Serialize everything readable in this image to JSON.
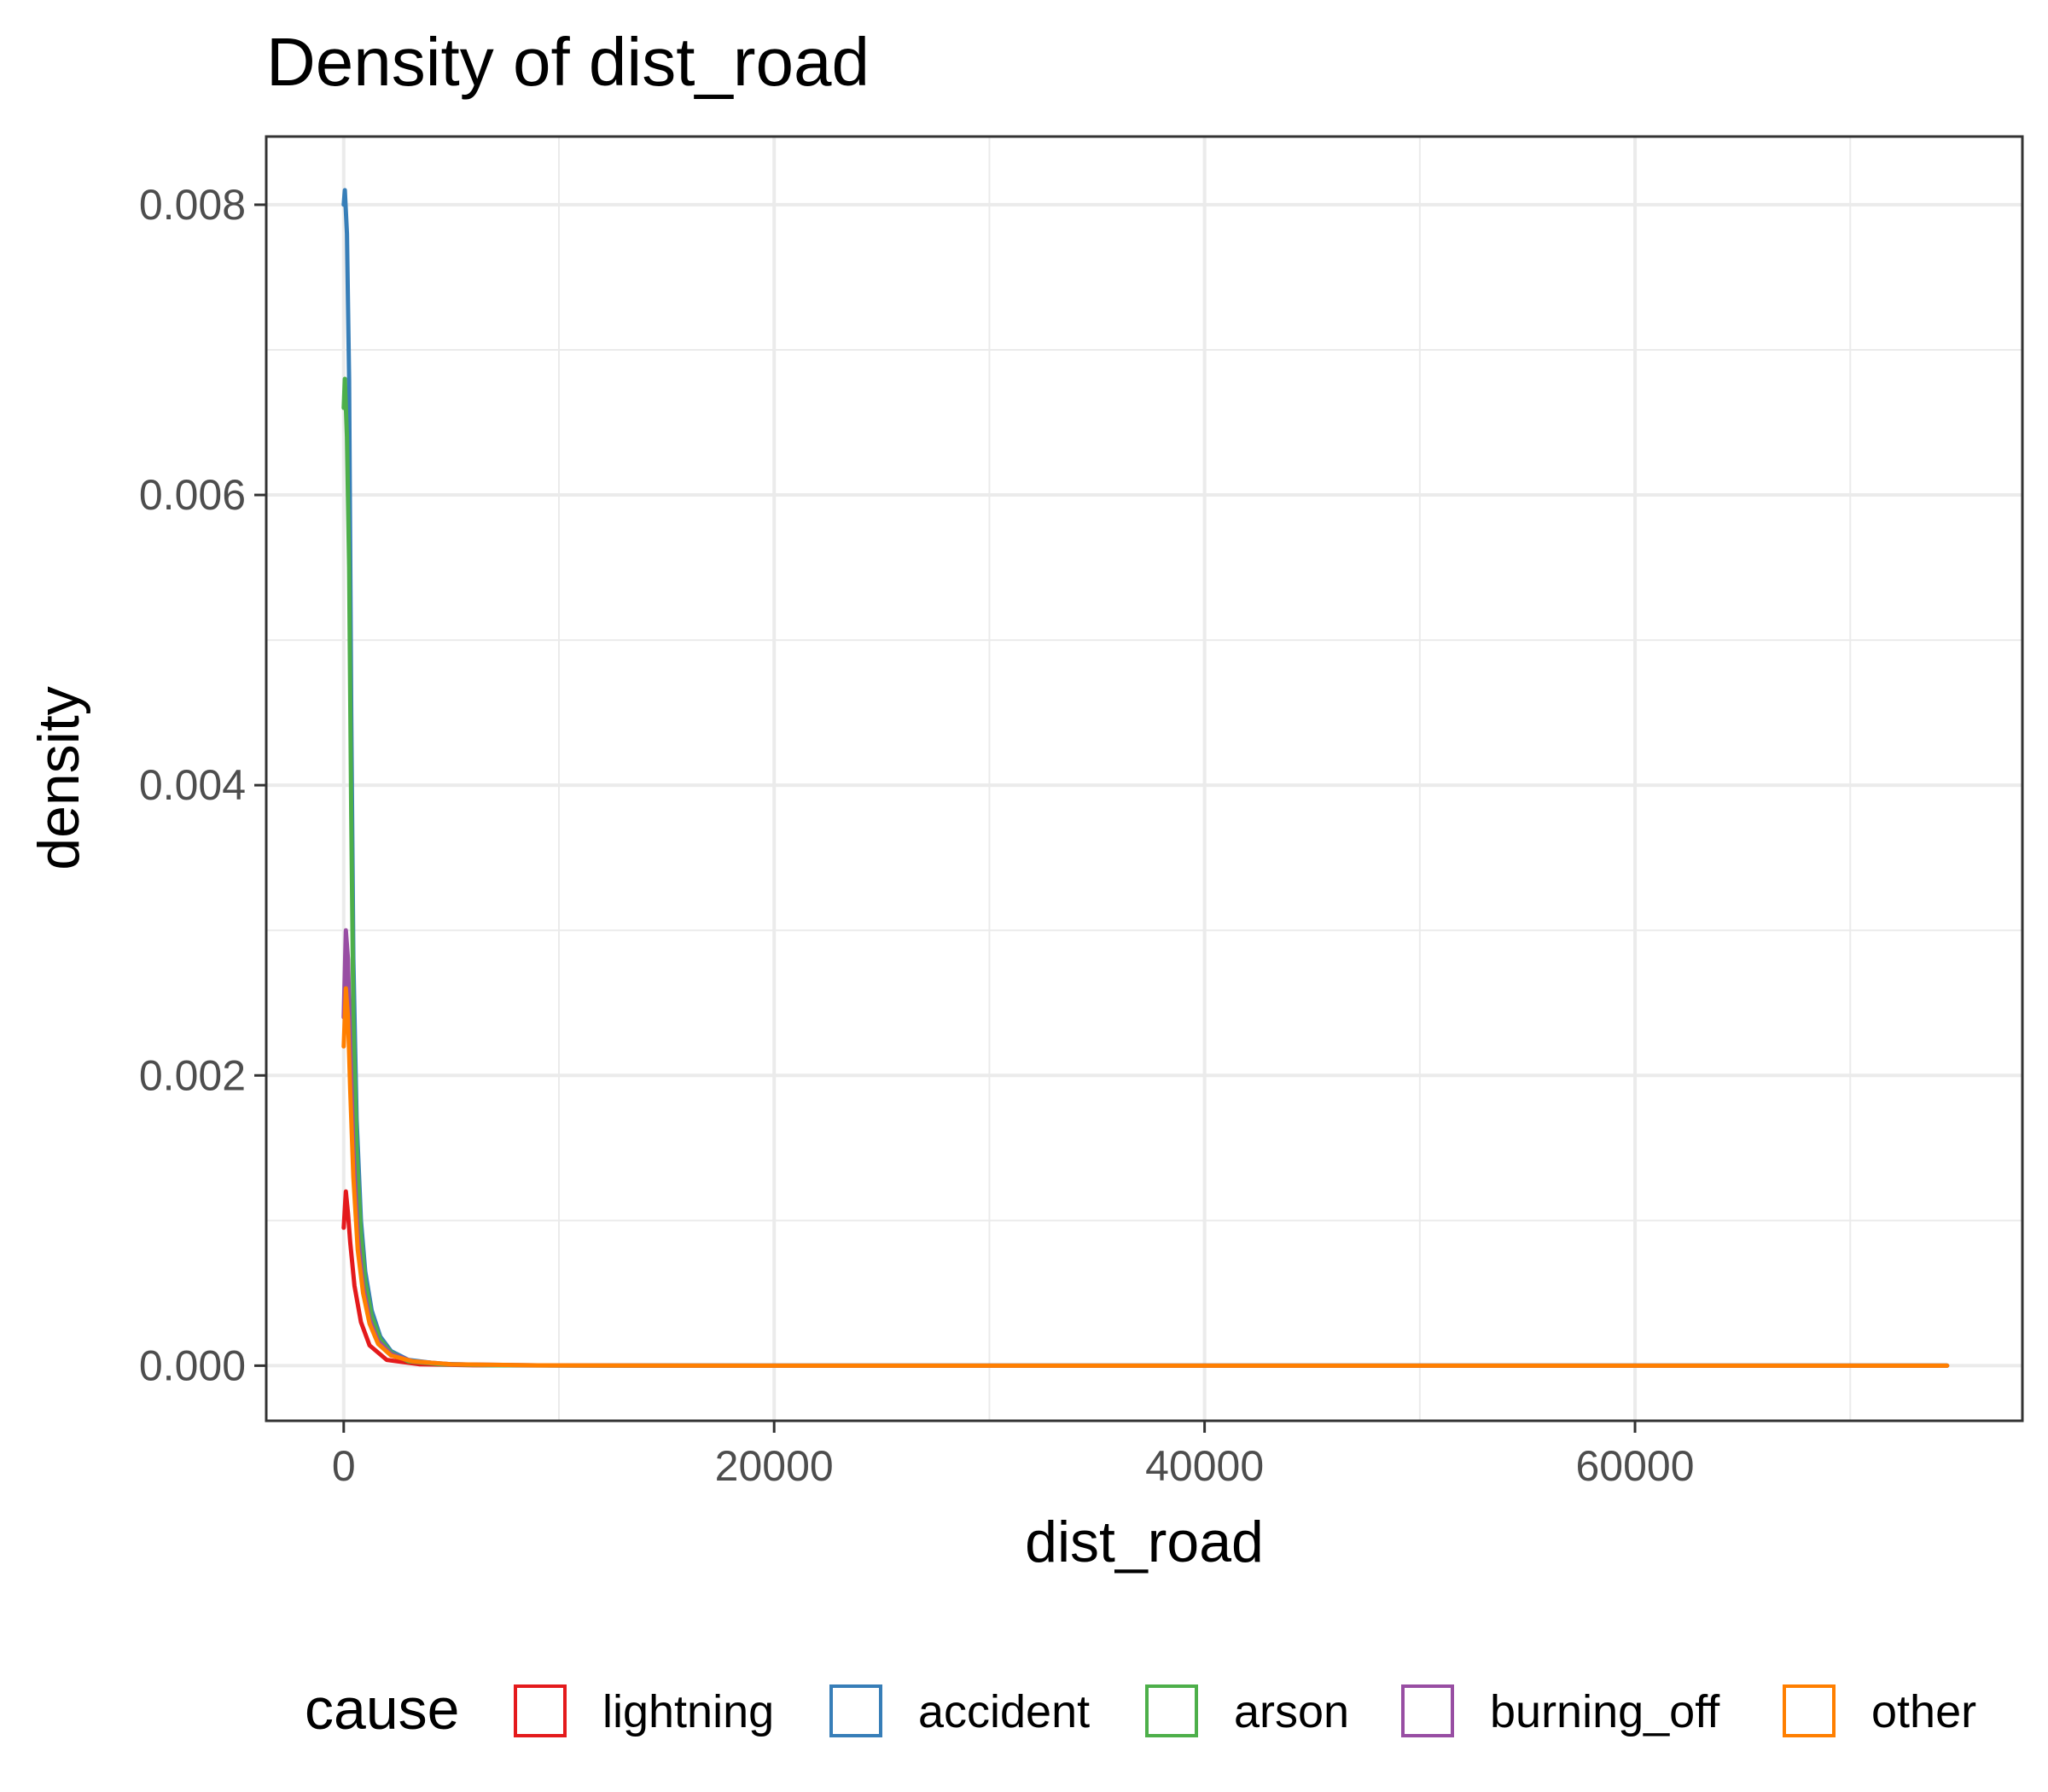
{
  "chart_data": {
    "type": "line",
    "title": "Density of dist_road",
    "xlabel": "dist_road",
    "ylabel": "density",
    "xlim": [
      -3600,
      78000
    ],
    "ylim": [
      -0.00038,
      0.00847
    ],
    "x_ticks": [
      0,
      20000,
      40000,
      60000
    ],
    "x_tick_labels": [
      "0",
      "20000",
      "40000",
      "60000"
    ],
    "x_minor": [
      10000,
      30000,
      50000,
      70000
    ],
    "y_ticks": [
      0,
      0.002,
      0.004,
      0.006,
      0.008
    ],
    "y_tick_labels": [
      "0.000",
      "0.002",
      "0.004",
      "0.006",
      "0.008"
    ],
    "y_minor": [
      0.001,
      0.003,
      0.005,
      0.007
    ],
    "grid": true,
    "legend": {
      "title": "cause",
      "position": "bottom",
      "items": [
        "lightning",
        "accident",
        "arson",
        "burning_off",
        "other"
      ]
    },
    "series": [
      {
        "name": "lightning",
        "color": "#e41a1c",
        "x": [
          0,
          100,
          200,
          300,
          500,
          800,
          1200,
          2000,
          3500,
          6000,
          12000,
          30000,
          60000,
          74500
        ],
        "y": [
          0.00095,
          0.0012,
          0.00105,
          0.00085,
          0.00055,
          0.0003,
          0.00014,
          4e-05,
          1e-05,
          3e-06,
          5e-07,
          0,
          0,
          0
        ]
      },
      {
        "name": "accident",
        "color": "#377eb8",
        "x": [
          0,
          50,
          150,
          250,
          350,
          450,
          600,
          800,
          1000,
          1300,
          1700,
          2200,
          3000,
          4500,
          7000,
          13000,
          30000,
          60000,
          74500
        ],
        "y": [
          0.008,
          0.0081,
          0.0078,
          0.0068,
          0.0045,
          0.0028,
          0.0017,
          0.001,
          0.00065,
          0.00038,
          0.0002,
          0.0001,
          4e-05,
          1.2e-05,
          3e-06,
          5e-07,
          0,
          0,
          0
        ]
      },
      {
        "name": "arson",
        "color": "#4daf4a",
        "x": [
          0,
          50,
          150,
          250,
          350,
          450,
          600,
          800,
          1000,
          1300,
          1700,
          2200,
          3000,
          4500,
          7000,
          13000,
          30000,
          60000,
          74500
        ],
        "y": [
          0.0066,
          0.0068,
          0.0064,
          0.0055,
          0.0038,
          0.0024,
          0.0015,
          0.0009,
          0.00058,
          0.00034,
          0.00018,
          9e-05,
          3e-05,
          1e-05,
          2e-06,
          4e-07,
          0,
          0,
          0
        ]
      },
      {
        "name": "burning_off",
        "color": "#984ea3",
        "x": [
          0,
          100,
          200,
          300,
          450,
          650,
          900,
          1200,
          1600,
          2200,
          3200,
          5000,
          9000,
          20000,
          45000,
          74500
        ],
        "y": [
          0.0024,
          0.003,
          0.0028,
          0.0022,
          0.0015,
          0.0009,
          0.00055,
          0.00032,
          0.00017,
          8e-05,
          3e-05,
          1e-05,
          2e-06,
          0,
          0,
          0
        ]
      },
      {
        "name": "other",
        "color": "#ff7f00",
        "x": [
          0,
          100,
          200,
          300,
          450,
          650,
          900,
          1200,
          1600,
          2200,
          3200,
          5000,
          9000,
          20000,
          45000,
          74500
        ],
        "y": [
          0.0022,
          0.0026,
          0.0024,
          0.0019,
          0.0013,
          0.0008,
          0.0005,
          0.00029,
          0.00015,
          7e-05,
          3e-05,
          1e-05,
          2e-06,
          0,
          0,
          0
        ]
      }
    ]
  }
}
